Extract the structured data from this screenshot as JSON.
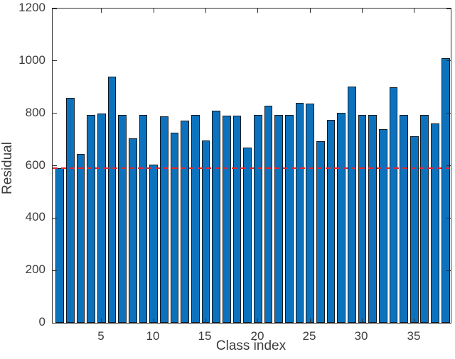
{
  "figure": {
    "background": "#ffffff",
    "axis_color": "#2e2e2e",
    "text_color": "#3d3d3d"
  },
  "chart_data": {
    "type": "bar",
    "title": "",
    "xlabel": "Class index",
    "ylabel": "Residual",
    "x": [
      1,
      2,
      3,
      4,
      5,
      6,
      7,
      8,
      9,
      10,
      11,
      12,
      13,
      14,
      15,
      16,
      17,
      18,
      19,
      20,
      21,
      22,
      23,
      24,
      25,
      26,
      27,
      28,
      29,
      30,
      31,
      32,
      33,
      34,
      35,
      36,
      37,
      38
    ],
    "values": [
      590,
      858,
      645,
      794,
      800,
      940,
      794,
      705,
      794,
      605,
      788,
      725,
      772,
      794,
      696,
      810,
      792,
      792,
      670,
      794,
      828,
      794,
      794,
      840,
      837,
      694,
      775,
      803,
      902,
      794,
      793,
      740,
      899,
      793,
      712,
      793,
      760,
      1010
    ],
    "bar_color": "#0c72bd",
    "bar_edge_color": "#131a21",
    "bar_width_fraction": 0.8,
    "xlim": [
      0.3,
      38.5
    ],
    "ylim": [
      0,
      1200
    ],
    "yticks": [
      0,
      200,
      400,
      600,
      800,
      1000,
      1200
    ],
    "xticks": [
      5,
      10,
      15,
      20,
      25,
      30,
      35
    ],
    "grid": false,
    "legend": null,
    "reference_line": {
      "value": 590,
      "color": "#e8232a",
      "style": "dashed"
    }
  }
}
